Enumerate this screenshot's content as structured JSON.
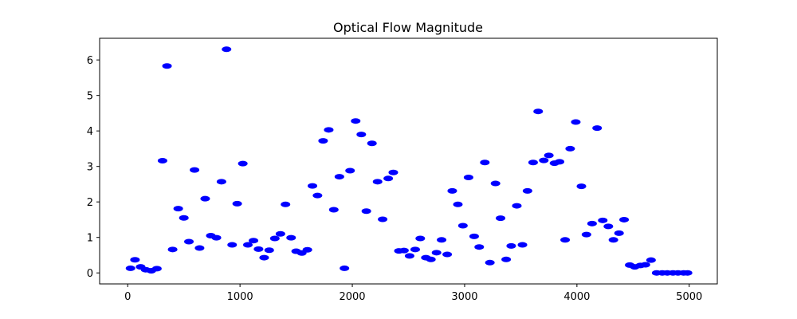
{
  "chart_data": {
    "type": "scatter",
    "title": "Optical Flow Magnitude",
    "xlabel": "",
    "ylabel": "",
    "xlim": [
      -250,
      5250
    ],
    "ylim": [
      -0.31,
      6.61
    ],
    "xticks": [
      0,
      1000,
      2000,
      3000,
      4000,
      5000
    ],
    "yticks": [
      0,
      1,
      2,
      3,
      4,
      5,
      6
    ],
    "grid": false,
    "marker_color": "#0000ff",
    "series": [
      {
        "points": [
          [
            25,
            0.13
          ],
          [
            65,
            0.37
          ],
          [
            115,
            0.17
          ],
          [
            160,
            0.09
          ],
          [
            210,
            0.06
          ],
          [
            260,
            0.12
          ],
          [
            310,
            3.16
          ],
          [
            350,
            5.83
          ],
          [
            400,
            0.66
          ],
          [
            450,
            1.81
          ],
          [
            500,
            1.55
          ],
          [
            545,
            0.88
          ],
          [
            595,
            2.9
          ],
          [
            640,
            0.7
          ],
          [
            690,
            2.09
          ],
          [
            740,
            1.05
          ],
          [
            790,
            0.99
          ],
          [
            835,
            2.57
          ],
          [
            880,
            6.3
          ],
          [
            930,
            0.79
          ],
          [
            975,
            1.95
          ],
          [
            1025,
            3.08
          ],
          [
            1070,
            0.79
          ],
          [
            1120,
            0.91
          ],
          [
            1165,
            0.67
          ],
          [
            1215,
            0.43
          ],
          [
            1260,
            0.64
          ],
          [
            1310,
            0.97
          ],
          [
            1360,
            1.1
          ],
          [
            1405,
            1.93
          ],
          [
            1455,
            0.99
          ],
          [
            1500,
            0.61
          ],
          [
            1550,
            0.56
          ],
          [
            1600,
            0.65
          ],
          [
            1645,
            2.45
          ],
          [
            1690,
            2.18
          ],
          [
            1740,
            3.72
          ],
          [
            1790,
            4.03
          ],
          [
            1835,
            1.78
          ],
          [
            1885,
            2.71
          ],
          [
            1930,
            0.13
          ],
          [
            1980,
            2.88
          ],
          [
            2030,
            4.28
          ],
          [
            2080,
            3.9
          ],
          [
            2125,
            1.74
          ],
          [
            2175,
            3.65
          ],
          [
            2225,
            2.57
          ],
          [
            2270,
            1.51
          ],
          [
            2320,
            2.66
          ],
          [
            2365,
            2.83
          ],
          [
            2415,
            0.62
          ],
          [
            2460,
            0.63
          ],
          [
            2510,
            0.48
          ],
          [
            2560,
            0.66
          ],
          [
            2605,
            0.97
          ],
          [
            2655,
            0.43
          ],
          [
            2700,
            0.38
          ],
          [
            2750,
            0.57
          ],
          [
            2795,
            0.93
          ],
          [
            2845,
            0.52
          ],
          [
            2890,
            2.31
          ],
          [
            2940,
            1.93
          ],
          [
            2985,
            1.33
          ],
          [
            3035,
            2.69
          ],
          [
            3085,
            1.03
          ],
          [
            3130,
            0.73
          ],
          [
            3180,
            3.11
          ],
          [
            3225,
            0.29
          ],
          [
            3275,
            2.52
          ],
          [
            3320,
            1.54
          ],
          [
            3370,
            0.38
          ],
          [
            3415,
            0.76
          ],
          [
            3465,
            1.89
          ],
          [
            3515,
            0.79
          ],
          [
            3560,
            2.31
          ],
          [
            3610,
            3.11
          ],
          [
            3655,
            4.55
          ],
          [
            3705,
            3.17
          ],
          [
            3750,
            3.31
          ],
          [
            3800,
            3.09
          ],
          [
            3845,
            3.13
          ],
          [
            3895,
            0.93
          ],
          [
            3940,
            3.5
          ],
          [
            3990,
            4.25
          ],
          [
            4040,
            2.44
          ],
          [
            4085,
            1.08
          ],
          [
            4135,
            1.39
          ],
          [
            4180,
            4.08
          ],
          [
            4230,
            1.48
          ],
          [
            4280,
            1.31
          ],
          [
            4325,
            0.93
          ],
          [
            4375,
            1.12
          ],
          [
            4420,
            1.5
          ],
          [
            4470,
            0.22
          ],
          [
            4515,
            0.17
          ],
          [
            4565,
            0.21
          ],
          [
            4610,
            0.23
          ],
          [
            4660,
            0.36
          ],
          [
            4710,
            0.0
          ],
          [
            4760,
            0.0
          ],
          [
            4805,
            0.0
          ],
          [
            4855,
            0.0
          ],
          [
            4900,
            0.0
          ],
          [
            4950,
            0.0
          ],
          [
            4985,
            0.0
          ]
        ]
      }
    ]
  }
}
